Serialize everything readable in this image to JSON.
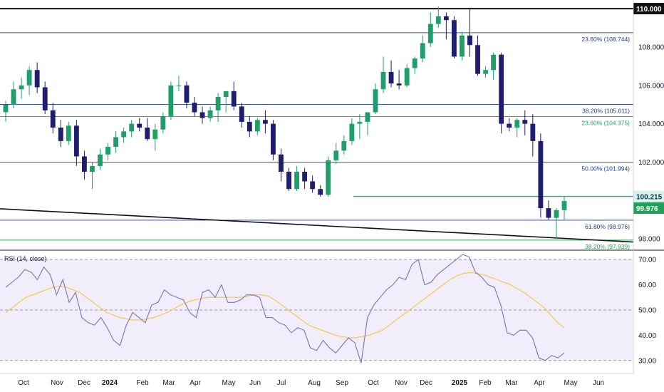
{
  "chart_data": [
    {
      "type": "candlestick",
      "ylim": [
        97.6,
        110.3
      ],
      "y_ticks": [
        "98.000",
        "100.000",
        "102.000",
        "104.000",
        "106.000",
        "108.000"
      ],
      "x_ticks": [
        "Oct",
        "Nov",
        "Dec",
        "2024",
        "Feb",
        "Mar",
        "Apr",
        "May",
        "Jun",
        "Jul",
        "Aug",
        "Sep",
        "Oct",
        "Nov",
        "Dec",
        "2025",
        "Feb",
        "Mar",
        "Apr",
        "May",
        "Jun"
      ],
      "x_ticks_bold": [
        "2024",
        "2025"
      ],
      "top_level": {
        "label": "110.000",
        "value": 110.0
      },
      "fib_levels": [
        {
          "label": "23.60% (108.744)",
          "value": 108.744,
          "color": "#1e3a8a"
        },
        {
          "label": "38.20% (105.011)",
          "value": 105.011,
          "color": "#1e3a8a"
        },
        {
          "label": "23.60% (104.375)",
          "value": 104.375,
          "color": "#22a05a"
        },
        {
          "label": "50.00% (101.994)",
          "value": 101.994,
          "color": "#1e3a8a"
        },
        {
          "label": "61.80% (98.976)",
          "value": 98.976,
          "color": "#1e3a8a"
        },
        {
          "label": "38.20% (97.939)",
          "value": 97.939,
          "color": "#22a05a"
        }
      ],
      "support_level": {
        "label": "100.215",
        "value": 100.215,
        "color": "#1fa7a7"
      },
      "last_price": {
        "label": "99.976",
        "value": 99.976,
        "color": "#22a05a"
      },
      "trendline": {
        "start": 99.57,
        "end": 97.84
      },
      "colors": {
        "up": "#1f9e6a",
        "down": "#1f1e6e"
      },
      "candles": [
        {
          "o": 104.6,
          "h": 105.2,
          "l": 104.1,
          "c": 105.0
        },
        {
          "o": 105.0,
          "h": 106.2,
          "l": 104.8,
          "c": 105.8
        },
        {
          "o": 105.8,
          "h": 106.4,
          "l": 105.3,
          "c": 106.0
        },
        {
          "o": 106.0,
          "h": 107.0,
          "l": 105.5,
          "c": 106.8
        },
        {
          "o": 106.8,
          "h": 107.2,
          "l": 105.6,
          "c": 105.9
        },
        {
          "o": 105.9,
          "h": 106.2,
          "l": 104.5,
          "c": 104.7
        },
        {
          "o": 104.7,
          "h": 105.1,
          "l": 103.5,
          "c": 103.8
        },
        {
          "o": 103.8,
          "h": 104.2,
          "l": 102.8,
          "c": 103.1
        },
        {
          "o": 103.1,
          "h": 104.1,
          "l": 102.9,
          "c": 103.9
        },
        {
          "o": 103.9,
          "h": 104.2,
          "l": 101.8,
          "c": 102.3
        },
        {
          "o": 102.3,
          "h": 102.6,
          "l": 101.1,
          "c": 101.5
        },
        {
          "o": 101.5,
          "h": 102.0,
          "l": 100.6,
          "c": 101.8
        },
        {
          "o": 101.8,
          "h": 102.7,
          "l": 101.6,
          "c": 102.4
        },
        {
          "o": 102.4,
          "h": 103.0,
          "l": 102.1,
          "c": 102.8
        },
        {
          "o": 102.8,
          "h": 103.6,
          "l": 102.5,
          "c": 103.3
        },
        {
          "o": 103.3,
          "h": 103.8,
          "l": 103.0,
          "c": 103.6
        },
        {
          "o": 103.6,
          "h": 104.2,
          "l": 103.3,
          "c": 104.0
        },
        {
          "o": 104.0,
          "h": 104.3,
          "l": 103.6,
          "c": 103.8
        },
        {
          "o": 103.8,
          "h": 104.3,
          "l": 103.1,
          "c": 103.2
        },
        {
          "o": 103.2,
          "h": 104.0,
          "l": 102.6,
          "c": 103.7
        },
        {
          "o": 103.7,
          "h": 104.6,
          "l": 103.5,
          "c": 104.4
        },
        {
          "o": 104.4,
          "h": 106.2,
          "l": 104.2,
          "c": 106.0
        },
        {
          "o": 106.0,
          "h": 106.5,
          "l": 105.7,
          "c": 106.0
        },
        {
          "o": 106.0,
          "h": 106.2,
          "l": 104.8,
          "c": 105.1
        },
        {
          "o": 105.1,
          "h": 105.4,
          "l": 104.4,
          "c": 104.6
        },
        {
          "o": 104.6,
          "h": 104.9,
          "l": 104.0,
          "c": 104.3
        },
        {
          "o": 104.3,
          "h": 104.9,
          "l": 104.1,
          "c": 104.7
        },
        {
          "o": 104.7,
          "h": 105.6,
          "l": 104.1,
          "c": 105.4
        },
        {
          "o": 105.4,
          "h": 105.7,
          "l": 104.6,
          "c": 105.7
        },
        {
          "o": 105.7,
          "h": 106.2,
          "l": 104.7,
          "c": 104.9
        },
        {
          "o": 104.9,
          "h": 105.1,
          "l": 103.8,
          "c": 104.1
        },
        {
          "o": 104.1,
          "h": 104.4,
          "l": 103.3,
          "c": 103.6
        },
        {
          "o": 103.6,
          "h": 104.3,
          "l": 103.4,
          "c": 104.2
        },
        {
          "o": 104.2,
          "h": 104.7,
          "l": 103.5,
          "c": 104.0
        },
        {
          "o": 104.0,
          "h": 104.2,
          "l": 102.1,
          "c": 102.4
        },
        {
          "o": 102.4,
          "h": 102.7,
          "l": 101.0,
          "c": 101.5
        },
        {
          "o": 101.5,
          "h": 101.7,
          "l": 100.5,
          "c": 100.6
        },
        {
          "o": 100.6,
          "h": 101.8,
          "l": 100.5,
          "c": 101.5
        },
        {
          "o": 101.5,
          "h": 101.7,
          "l": 100.6,
          "c": 101.0
        },
        {
          "o": 101.0,
          "h": 101.3,
          "l": 100.4,
          "c": 100.6
        },
        {
          "o": 100.6,
          "h": 100.8,
          "l": 100.2,
          "c": 100.3
        },
        {
          "o": 100.3,
          "h": 102.3,
          "l": 100.2,
          "c": 102.1
        },
        {
          "o": 102.1,
          "h": 103.0,
          "l": 101.9,
          "c": 102.6
        },
        {
          "o": 102.6,
          "h": 103.4,
          "l": 102.4,
          "c": 103.1
        },
        {
          "o": 103.1,
          "h": 104.3,
          "l": 102.9,
          "c": 104.0
        },
        {
          "o": 104.0,
          "h": 104.5,
          "l": 103.2,
          "c": 104.1
        },
        {
          "o": 104.1,
          "h": 104.6,
          "l": 103.4,
          "c": 104.6
        },
        {
          "o": 104.6,
          "h": 106.1,
          "l": 104.5,
          "c": 105.8
        },
        {
          "o": 105.8,
          "h": 107.5,
          "l": 105.6,
          "c": 106.7
        },
        {
          "o": 106.7,
          "h": 107.3,
          "l": 105.9,
          "c": 106.1
        },
        {
          "o": 106.1,
          "h": 106.8,
          "l": 105.8,
          "c": 106.0
        },
        {
          "o": 106.0,
          "h": 107.1,
          "l": 105.9,
          "c": 106.9
        },
        {
          "o": 106.9,
          "h": 107.5,
          "l": 106.6,
          "c": 107.4
        },
        {
          "o": 107.4,
          "h": 108.6,
          "l": 107.2,
          "c": 108.2
        },
        {
          "o": 108.2,
          "h": 109.8,
          "l": 108.0,
          "c": 109.2
        },
        {
          "o": 109.2,
          "h": 110.1,
          "l": 109.0,
          "c": 109.6
        },
        {
          "o": 109.6,
          "h": 109.8,
          "l": 108.4,
          "c": 109.4
        },
        {
          "o": 109.4,
          "h": 109.6,
          "l": 107.4,
          "c": 107.5
        },
        {
          "o": 107.5,
          "h": 108.8,
          "l": 107.3,
          "c": 108.6
        },
        {
          "o": 108.6,
          "h": 110.0,
          "l": 107.5,
          "c": 108.1
        },
        {
          "o": 108.1,
          "h": 108.6,
          "l": 106.5,
          "c": 106.6
        },
        {
          "o": 106.6,
          "h": 107.0,
          "l": 106.4,
          "c": 106.8
        },
        {
          "o": 106.8,
          "h": 107.7,
          "l": 106.3,
          "c": 107.6
        },
        {
          "o": 107.6,
          "h": 107.7,
          "l": 103.5,
          "c": 104.0
        },
        {
          "o": 104.0,
          "h": 104.3,
          "l": 103.6,
          "c": 103.8
        },
        {
          "o": 103.8,
          "h": 104.3,
          "l": 103.3,
          "c": 104.2
        },
        {
          "o": 104.2,
          "h": 104.7,
          "l": 103.4,
          "c": 104.0
        },
        {
          "o": 104.0,
          "h": 104.5,
          "l": 102.3,
          "c": 103.1
        },
        {
          "o": 103.1,
          "h": 103.5,
          "l": 99.1,
          "c": 99.6
        },
        {
          "o": 99.6,
          "h": 100.0,
          "l": 99.0,
          "c": 99.1
        },
        {
          "o": 99.1,
          "h": 99.6,
          "l": 98.0,
          "c": 99.5
        },
        {
          "o": 99.5,
          "h": 100.2,
          "l": 99.0,
          "c": 99.976
        }
      ]
    },
    {
      "type": "line",
      "title": "RSI (14, close)",
      "ylim": [
        26,
        72
      ],
      "y_ticks": [
        "30.00",
        "40.00",
        "50.00",
        "60.00",
        "70.00"
      ],
      "band": [
        30,
        70
      ],
      "midline": 50,
      "series": [
        {
          "values": [
            59,
            61,
            63,
            66,
            65,
            62,
            67,
            64,
            56,
            62,
            53,
            57,
            47,
            45,
            44,
            47,
            43,
            38,
            36,
            44,
            49,
            47,
            45,
            52,
            53,
            58,
            56,
            55,
            54,
            49,
            47,
            57,
            58,
            55,
            60,
            53,
            53,
            54,
            56,
            56,
            55,
            47,
            47,
            45,
            44,
            41,
            43,
            42,
            35,
            34,
            38,
            35,
            33,
            36,
            39,
            37,
            29,
            47,
            52,
            55,
            58,
            60,
            63,
            62,
            68,
            70,
            60,
            61,
            64,
            66,
            68,
            70,
            72,
            71,
            65,
            63,
            60,
            59,
            52,
            41,
            40,
            42,
            42,
            39,
            31,
            30,
            32,
            31,
            33
          ],
          "color": "#7a72b8"
        },
        {
          "values": [
            49,
            51,
            53,
            55,
            56,
            57,
            58,
            59,
            59.5,
            59,
            58,
            57,
            55,
            53,
            51,
            49,
            48,
            47,
            46.5,
            46,
            46,
            46.5,
            47,
            48,
            49,
            50.5,
            52,
            53,
            54,
            54.5,
            55,
            55,
            55,
            55,
            55,
            55,
            55.5,
            56,
            56,
            55.5,
            54,
            52,
            50,
            48,
            46,
            44,
            43,
            42,
            41,
            40,
            39.5,
            39,
            39,
            39.5,
            40,
            41,
            42,
            44,
            46,
            48,
            50,
            52,
            54,
            56,
            58,
            60,
            62,
            63.5,
            64.5,
            64.8,
            64.5,
            64,
            63,
            62,
            61,
            60,
            58.5,
            57,
            55,
            53,
            51,
            48,
            45,
            43
          ],
          "color": "#f5c542"
        }
      ]
    }
  ]
}
